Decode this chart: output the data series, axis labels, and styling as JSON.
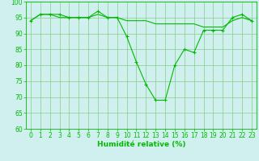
{
  "x": [
    0,
    1,
    2,
    3,
    4,
    5,
    6,
    7,
    8,
    9,
    10,
    11,
    12,
    13,
    14,
    15,
    16,
    17,
    18,
    19,
    20,
    21,
    22,
    23
  ],
  "line1": [
    94,
    96,
    96,
    96,
    95,
    95,
    95,
    97,
    95,
    95,
    89,
    81,
    74,
    69,
    69,
    80,
    85,
    84,
    91,
    91,
    91,
    95,
    96,
    94
  ],
  "line2": [
    94,
    96,
    96,
    95,
    95,
    95,
    95,
    96,
    95,
    95,
    94,
    94,
    94,
    93,
    93,
    93,
    93,
    93,
    92,
    92,
    92,
    94,
    95,
    94
  ],
  "line_color": "#00bb00",
  "bg_color": "#d0f0f0",
  "grid_color": "#88cc88",
  "xlabel": "Humidité relative (%)",
  "ylim": [
    60,
    100
  ],
  "xlim": [
    -0.5,
    23.5
  ],
  "yticks": [
    60,
    65,
    70,
    75,
    80,
    85,
    90,
    95,
    100
  ],
  "xticks": [
    0,
    1,
    2,
    3,
    4,
    5,
    6,
    7,
    8,
    9,
    10,
    11,
    12,
    13,
    14,
    15,
    16,
    17,
    18,
    19,
    20,
    21,
    22,
    23
  ],
  "tick_fontsize": 5.5,
  "xlabel_fontsize": 6.5,
  "marker": "+"
}
